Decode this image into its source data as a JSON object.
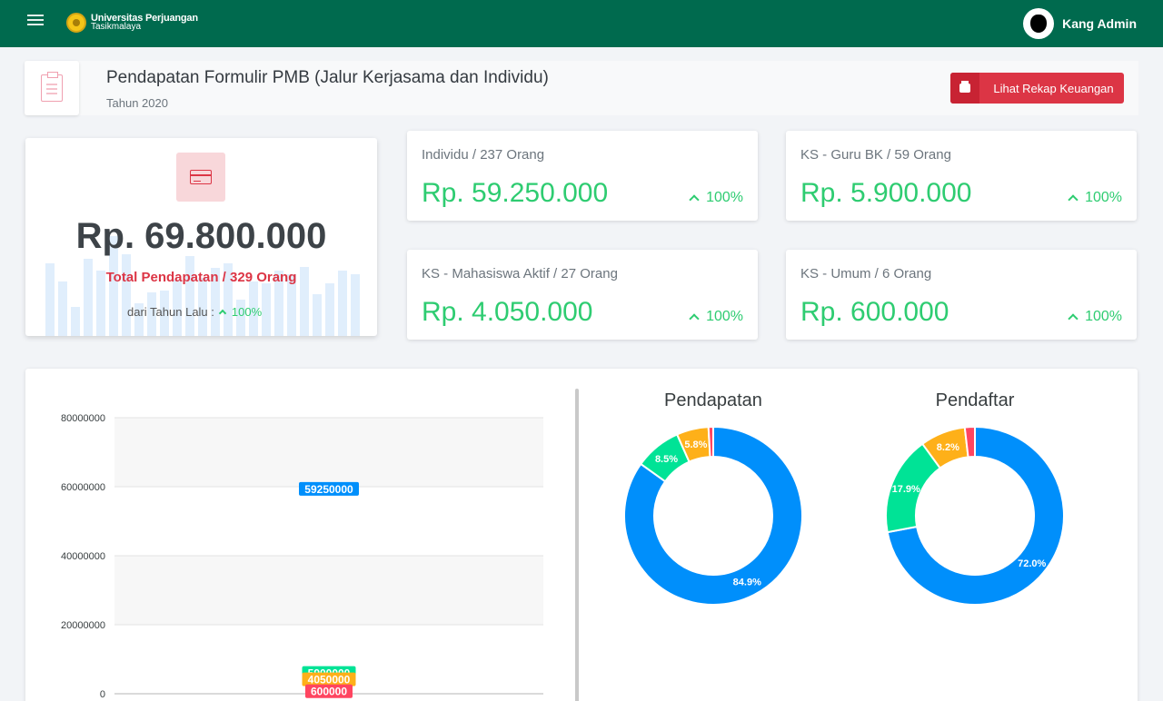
{
  "topbar": {
    "logo_line1": "Universitas Perjuangan",
    "logo_line2": "Tasikmalaya",
    "user_name": "Kang Admin"
  },
  "header": {
    "title": "Pendapatan Formulir PMB (Jalur Kerjasama dan Individu)",
    "subtitle": "Tahun 2020",
    "button_label": "Lihat Rekap Keuangan"
  },
  "total_card": {
    "amount": "Rp. 69.800.000",
    "label": "Total Pendapatan / 329 Orang",
    "footer_text": "dari Tahun Lalu :",
    "footer_pct": "100%"
  },
  "stats": [
    {
      "title": "Individu / 237 Orang",
      "value": "Rp. 59.250.000",
      "pct": "100%"
    },
    {
      "title": "KS - Guru BK / 59 Orang",
      "value": "Rp. 5.900.000",
      "pct": "100%"
    },
    {
      "title": "KS - Mahasiswa Aktif / 27 Orang",
      "value": "Rp. 4.050.000",
      "pct": "100%"
    },
    {
      "title": "KS - Umum / 6 Orang",
      "value": "Rp. 600.000",
      "pct": "100%"
    }
  ],
  "colors": {
    "brand_green": "#006a4e",
    "accent_red": "#dc3545",
    "value_green": "#2ecc71",
    "series": [
      "#008ffb",
      "#00e396",
      "#feb019",
      "#ff4560"
    ]
  },
  "chart_data": [
    {
      "type": "line",
      "y_ticks": [
        "80000000",
        "60000000",
        "40000000",
        "20000000",
        "0"
      ],
      "ylim": [
        0,
        80000000
      ],
      "series": [
        {
          "values": [
            59250000
          ],
          "label": "59250000"
        },
        {
          "values": [
            5900000
          ],
          "label": "5900000"
        },
        {
          "values": [
            4050000
          ],
          "label": "4050000"
        },
        {
          "values": [
            600000
          ],
          "label": "600000"
        }
      ]
    },
    {
      "type": "pie",
      "title": "Pendapatan",
      "values": [
        59250000,
        5900000,
        4050000,
        600000
      ],
      "labels": [
        "84.9%",
        "8.5%",
        "5.8%",
        ""
      ]
    },
    {
      "type": "pie",
      "title": "Pendaftar",
      "values": [
        237,
        59,
        27,
        6
      ],
      "labels": [
        "72.0%",
        "17.9%",
        "8.2%",
        ""
      ]
    }
  ]
}
